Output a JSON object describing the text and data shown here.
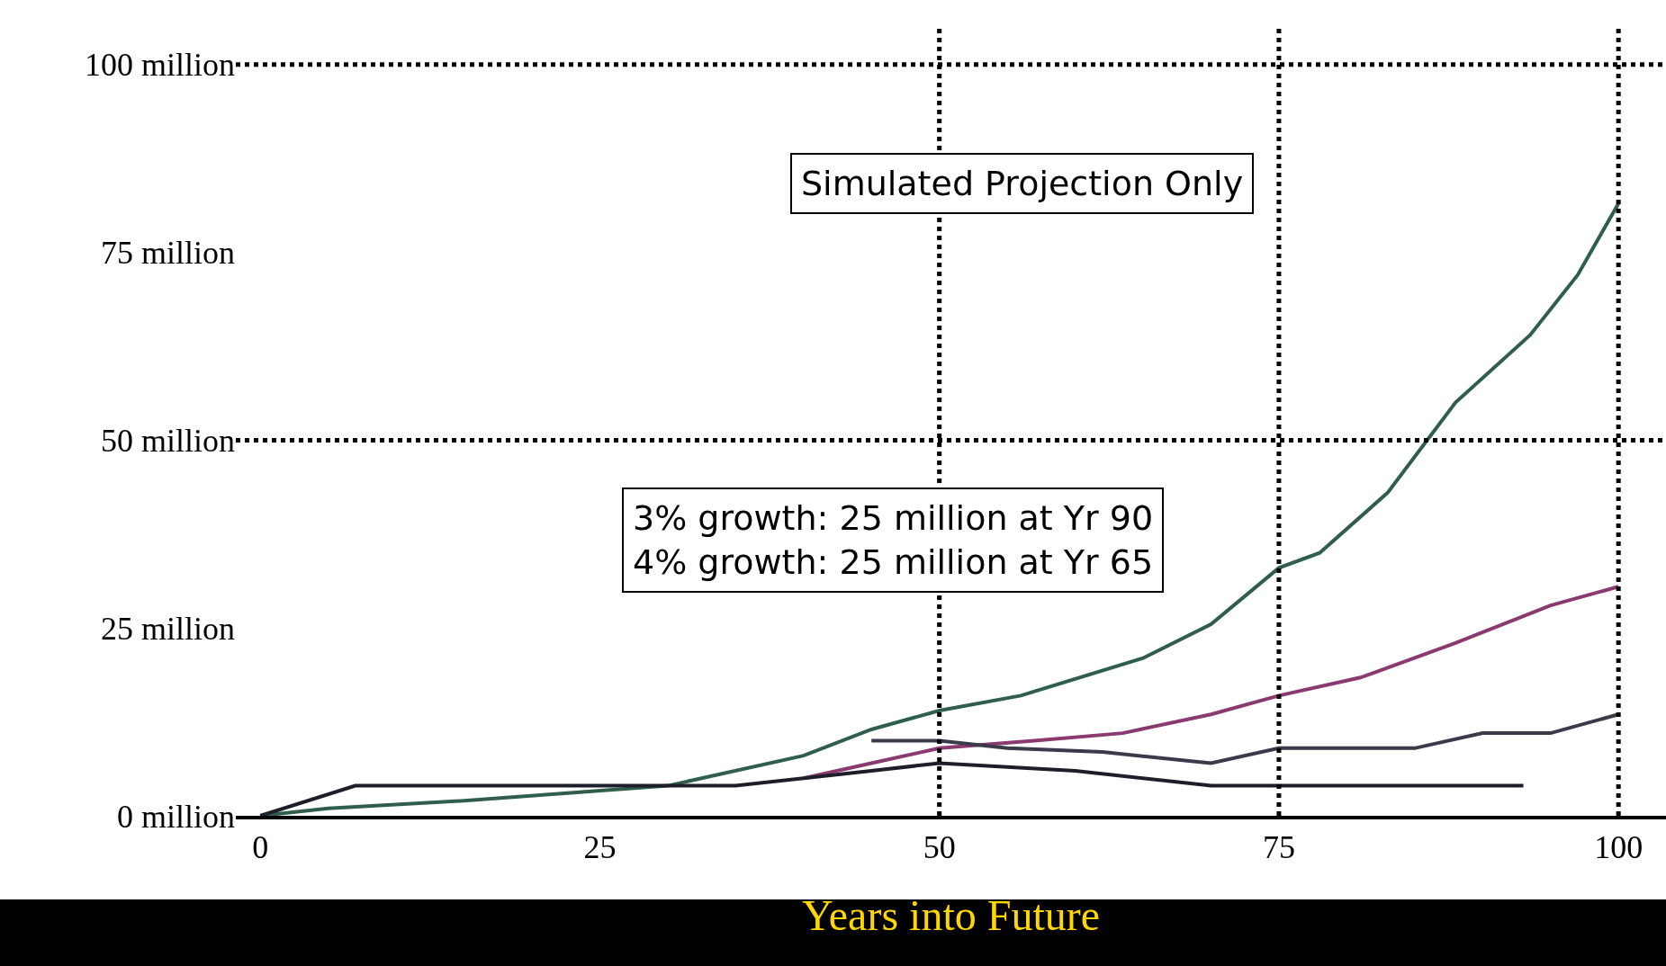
{
  "chart_data": {
    "type": "line",
    "xlabel": "Years into Future",
    "xlim": [
      -1.8,
      103.5
    ],
    "ylim": [
      0,
      105
    ],
    "xticks": [
      0,
      25,
      50,
      75,
      100
    ],
    "yticks": [
      {
        "value": 0,
        "label": "0 million"
      },
      {
        "value": 25,
        "label": "25 million"
      },
      {
        "value": 50,
        "label": "50 million"
      },
      {
        "value": 75,
        "label": "75 million"
      },
      {
        "value": 100,
        "label": "100 million"
      }
    ],
    "marker": "none",
    "line_style": "solid",
    "series": [
      {
        "color": "#2f5f4a",
        "x": [
          0,
          5,
          15,
          30,
          40,
          45,
          50,
          56,
          65,
          70,
          75,
          78,
          83,
          88,
          93.5,
          97,
          100
        ],
        "values": [
          0,
          1,
          2,
          4,
          8,
          11.5,
          14,
          16,
          21,
          25.5,
          33,
          35,
          43,
          55,
          64,
          72,
          81.5
        ]
      },
      {
        "color": "#8a3a6e",
        "x": [
          40,
          45,
          50,
          57,
          63.5,
          70,
          75,
          81,
          88,
          95,
          100
        ],
        "values": [
          5,
          7,
          9,
          10,
          11,
          13.5,
          16,
          18.4,
          23,
          28,
          30.5
        ]
      },
      {
        "color": "#3a3a4a",
        "x": [
          45,
          50,
          55,
          62,
          70,
          75,
          85,
          90,
          95,
          100
        ],
        "values": [
          10,
          10,
          9,
          8.5,
          7,
          9,
          9,
          11,
          11,
          13.5
        ]
      },
      {
        "color": "#1e1e2a",
        "x": [
          0,
          7,
          20,
          35,
          45,
          50,
          60,
          70,
          75,
          85,
          93
        ],
        "values": [
          0,
          4,
          4,
          4,
          6,
          7,
          6,
          4,
          4,
          4,
          4
        ]
      }
    ],
    "ref_lines": [
      {
        "axis": "y",
        "value": 50,
        "color": "#000000",
        "line_style": "dotted"
      },
      {
        "axis": "y",
        "value": 100,
        "color": "#000000",
        "line_style": "dotted"
      },
      {
        "axis": "x",
        "value": 50,
        "color": "#000000",
        "line_style": "dotted"
      },
      {
        "axis": "x",
        "value": 75,
        "color": "#000000",
        "line_style": "dotted"
      },
      {
        "axis": "x",
        "value": 100,
        "color": "#000000",
        "line_style": "dotted"
      }
    ],
    "annotations": [
      "Simulated Projection Only",
      "3% growth: 25 million at Yr 90\n4% growth: 25 million at Yr 65"
    ]
  }
}
